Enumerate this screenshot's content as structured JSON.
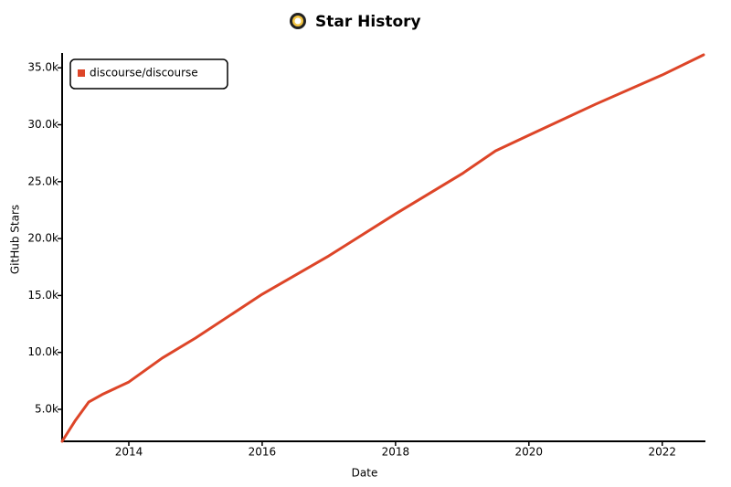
{
  "chart_data": {
    "type": "line",
    "title": "Star History",
    "x_label": "Date",
    "y_label": "GitHub Stars",
    "x": [
      2013.0,
      2013.2,
      2013.4,
      2013.6,
      2014.0,
      2014.5,
      2015.0,
      2016.0,
      2017.0,
      2018.0,
      2019.0,
      2019.5,
      2020.0,
      2021.0,
      2022.0,
      2022.62
    ],
    "series": [
      {
        "name": "discourse/discourse",
        "color": "#dd4528",
        "values": [
          2190,
          4040,
          5650,
          6300,
          7400,
          9500,
          11260,
          15110,
          18480,
          22170,
          25700,
          27700,
          29080,
          31800,
          34370,
          36140
        ]
      }
    ],
    "xlim": [
      2013.0,
      2022.62
    ],
    "xticks": [
      2014,
      2016,
      2018,
      2020,
      2022
    ],
    "ylim": [
      2190,
      36140
    ],
    "yticks": [
      {
        "value": 5000,
        "label": "5.0k"
      },
      {
        "value": 10000,
        "label": "10.0k"
      },
      {
        "value": 15000,
        "label": "15.0k"
      },
      {
        "value": 20000,
        "label": "20.0k"
      },
      {
        "value": 25000,
        "label": "25.0k"
      },
      {
        "value": 30000,
        "label": "30.0k"
      },
      {
        "value": 35000,
        "label": "35.0k"
      }
    ],
    "legend": "top-left"
  }
}
